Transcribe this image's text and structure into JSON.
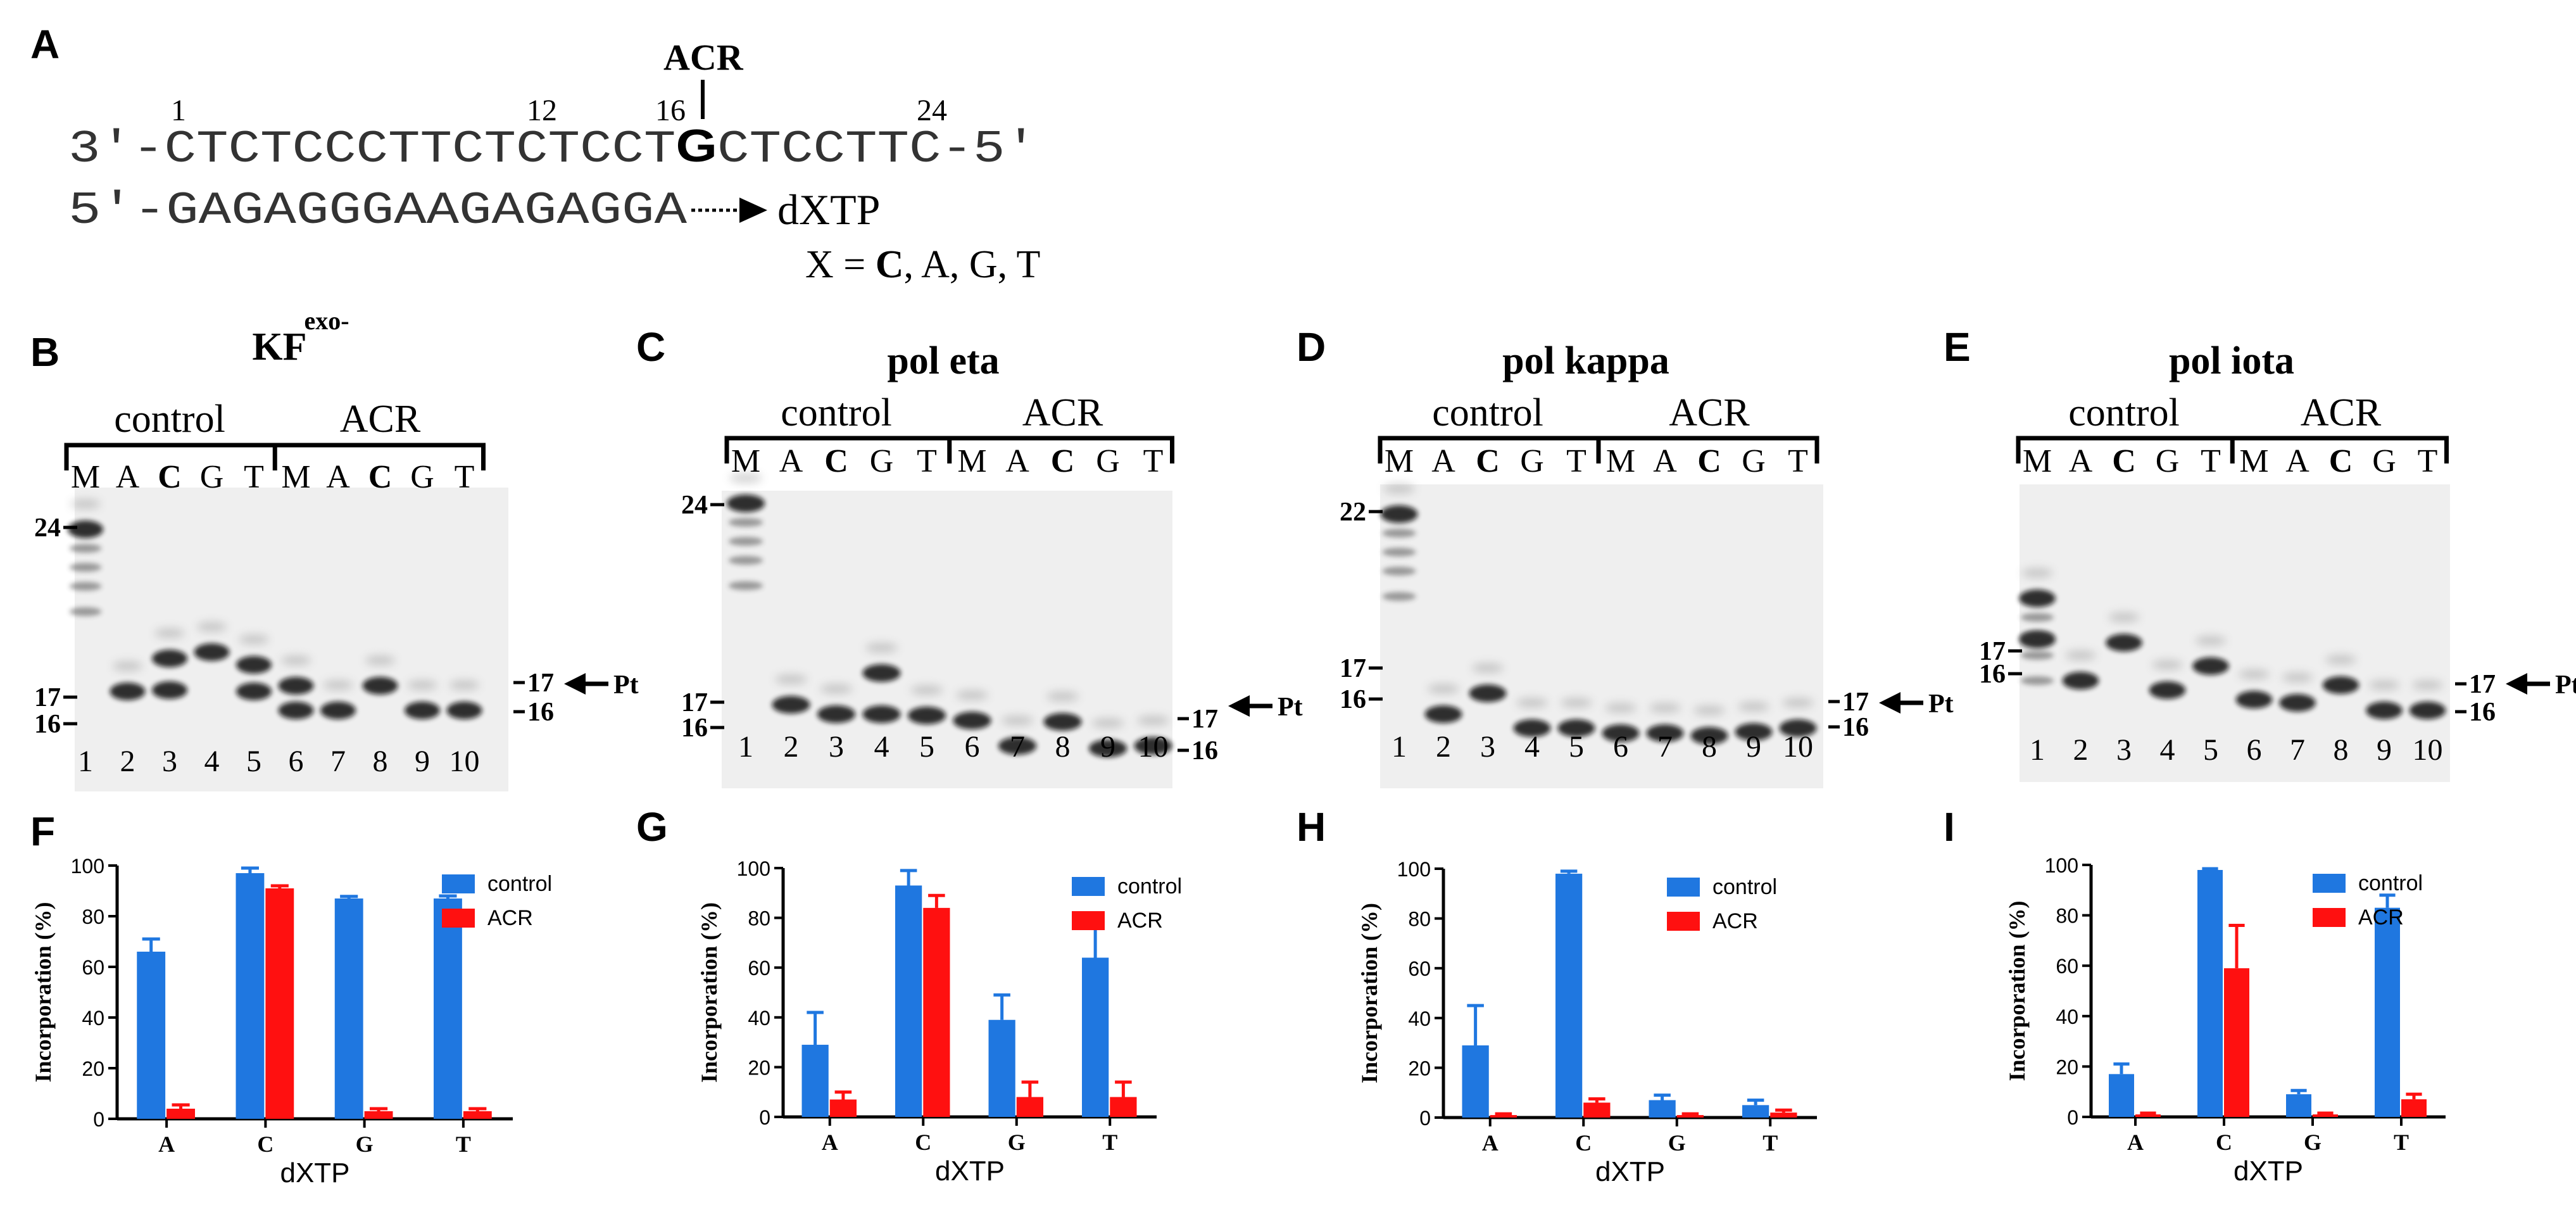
{
  "panel_letters": [
    "A",
    "B",
    "C",
    "D",
    "E",
    "F",
    "G",
    "H",
    "I"
  ],
  "sequence": {
    "acr_label": "ACR",
    "numbers": [
      "1",
      "12",
      "16",
      "24"
    ],
    "template_left": "3'-CTCTCCCTTCTCTCCT",
    "template_lesion": "G",
    "template_right": "CTCCTTC-5'",
    "primer": "5'-GAGAGGGAAGAGAGGA",
    "dxtp_label": "dXTP",
    "x_prefix": "X = ",
    "x_bold": "C",
    "x_rest": ", A, G, T"
  },
  "gels": [
    {
      "title": "KF",
      "title_sup": "exo-",
      "lanes": [
        "M",
        "A",
        "C",
        "G",
        "T",
        "M",
        "A",
        "C",
        "G",
        "T"
      ],
      "bold_lane": [
        2,
        7
      ],
      "group_labels": [
        "control",
        "ACR"
      ],
      "lane_numbers": [
        "1",
        "2",
        "3",
        "4",
        "5",
        "6",
        "7",
        "8",
        "9",
        "10"
      ],
      "left_markers": [
        "24",
        "17",
        "16"
      ],
      "right_markers": [
        "17",
        "16"
      ],
      "pt_label": "Pt"
    },
    {
      "title": "pol eta",
      "title_sup": "",
      "lanes": [
        "M",
        "A",
        "C",
        "G",
        "T",
        "M",
        "A",
        "C",
        "G",
        "T"
      ],
      "bold_lane": [
        2,
        7
      ],
      "group_labels": [
        "control",
        "ACR"
      ],
      "lane_numbers": [
        "1",
        "2",
        "3",
        "4",
        "5",
        "6",
        "7",
        "8",
        "9",
        "10"
      ],
      "left_markers": [
        "24",
        "17",
        "16"
      ],
      "right_markers": [
        "17",
        "16"
      ],
      "pt_label": "Pt"
    },
    {
      "title": "pol kappa",
      "title_sup": "",
      "lanes": [
        "M",
        "A",
        "C",
        "G",
        "T",
        "M",
        "A",
        "C",
        "G",
        "T"
      ],
      "bold_lane": [
        2,
        7
      ],
      "group_labels": [
        "control",
        "ACR"
      ],
      "lane_numbers": [
        "1",
        "2",
        "3",
        "4",
        "5",
        "6",
        "7",
        "8",
        "9",
        "10"
      ],
      "left_markers": [
        "22",
        "17",
        "16"
      ],
      "right_markers": [
        "17",
        "16"
      ],
      "pt_label": "Pt"
    },
    {
      "title": "pol iota",
      "title_sup": "",
      "lanes": [
        "M",
        "A",
        "C",
        "G",
        "T",
        "M",
        "A",
        "C",
        "G",
        "T"
      ],
      "bold_lane": [
        2,
        7
      ],
      "group_labels": [
        "control",
        "ACR"
      ],
      "lane_numbers": [
        "1",
        "2",
        "3",
        "4",
        "5",
        "6",
        "7",
        "8",
        "9",
        "10"
      ],
      "left_markers": [
        "17",
        "16"
      ],
      "right_markers": [
        "17",
        "16"
      ],
      "pt_label": "Pt"
    }
  ],
  "chart_data": [
    {
      "type": "bar",
      "panel": "F",
      "categories": [
        "A",
        "C",
        "G",
        "T"
      ],
      "xlabel": "dXTP",
      "ylabel": "Incorporation (%)",
      "ylim": [
        0,
        100
      ],
      "yticks": [
        0,
        20,
        40,
        60,
        80,
        100
      ],
      "legend": "top-right",
      "series": [
        {
          "name": "control",
          "color": "#1f77e0",
          "values": [
            66,
            97,
            87,
            87
          ],
          "errors": [
            5,
            2,
            0.8,
            1
          ]
        },
        {
          "name": "ACR",
          "color": "#ff1010",
          "values": [
            4,
            91,
            3,
            3
          ],
          "errors": [
            1.5,
            1,
            1,
            1
          ]
        }
      ]
    },
    {
      "type": "bar",
      "panel": "G",
      "categories": [
        "A",
        "C",
        "G",
        "T"
      ],
      "xlabel": "dXTP",
      "ylabel": "Incorporation (%)",
      "ylim": [
        0,
        100
      ],
      "yticks": [
        0,
        20,
        40,
        60,
        80,
        100
      ],
      "legend": "top-right",
      "series": [
        {
          "name": "control",
          "color": "#1f77e0",
          "values": [
            29,
            93,
            39,
            64
          ],
          "errors": [
            13,
            6,
            10,
            16
          ]
        },
        {
          "name": "ACR",
          "color": "#ff1010",
          "values": [
            7,
            84,
            8,
            8
          ],
          "errors": [
            3,
            5,
            6,
            6
          ]
        }
      ]
    },
    {
      "type": "bar",
      "panel": "H",
      "categories": [
        "A",
        "C",
        "G",
        "T"
      ],
      "xlabel": "dXTP",
      "ylabel": "Incorporation (%)",
      "ylim": [
        0,
        100
      ],
      "yticks": [
        0,
        20,
        40,
        60,
        80,
        100
      ],
      "legend": "top-right",
      "series": [
        {
          "name": "control",
          "color": "#1f77e0",
          "values": [
            29,
            98,
            7,
            5
          ],
          "errors": [
            16,
            1,
            2,
            2
          ]
        },
        {
          "name": "ACR",
          "color": "#ff1010",
          "values": [
            1,
            6,
            1,
            2
          ],
          "errors": [
            0.5,
            1.5,
            0.5,
            1
          ]
        }
      ]
    },
    {
      "type": "bar",
      "panel": "I",
      "categories": [
        "A",
        "C",
        "G",
        "T"
      ],
      "xlabel": "dXTP",
      "ylabel": "Incorporation (%)",
      "ylim": [
        0,
        100
      ],
      "yticks": [
        0,
        20,
        40,
        60,
        80,
        100
      ],
      "legend": "top-right",
      "series": [
        {
          "name": "control",
          "color": "#1f77e0",
          "values": [
            17,
            98,
            9,
            83
          ],
          "errors": [
            4,
            0.5,
            1.5,
            5
          ]
        },
        {
          "name": "ACR",
          "color": "#ff1010",
          "values": [
            1,
            59,
            1,
            7
          ],
          "errors": [
            0.5,
            17,
            0.5,
            2
          ]
        }
      ]
    }
  ]
}
